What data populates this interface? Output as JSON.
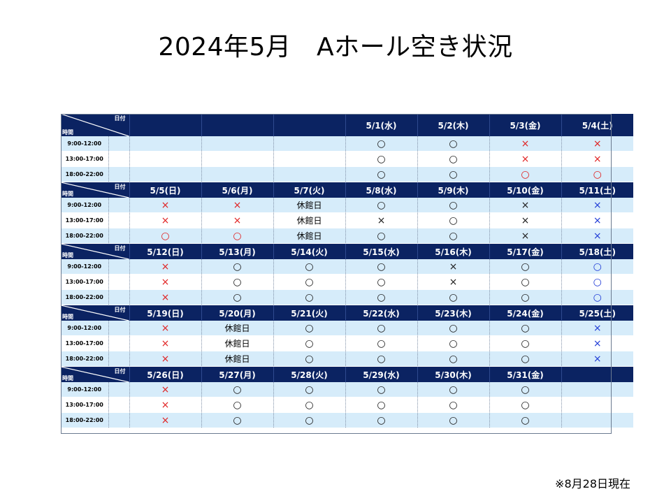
{
  "title": "2024年5月　Aホール空き状況",
  "footnote": "※8月28日現在",
  "colors": {
    "header_bg": "#0b2362",
    "row_tint": "#d6ecfa",
    "available_red": "#e02020",
    "available_blue": "#1f3bd6"
  },
  "corner": {
    "date_label": "日付",
    "time_label": "時間"
  },
  "time_slots": [
    "9:00-12:00",
    "13:00-17:00",
    "18:00-22:00"
  ],
  "weeks": [
    {
      "days": [
        "",
        "",
        "",
        "5/1(水)",
        "5/2(木)",
        "5/3(金)",
        "5/4(土)"
      ],
      "slots": [
        [
          {
            "t": ""
          },
          {
            "t": ""
          },
          {
            "t": ""
          },
          {
            "t": "○",
            "c": "black"
          },
          {
            "t": "○",
            "c": "black"
          },
          {
            "t": "×",
            "c": "red"
          },
          {
            "t": "×",
            "c": "red"
          }
        ],
        [
          {
            "t": ""
          },
          {
            "t": ""
          },
          {
            "t": ""
          },
          {
            "t": "○",
            "c": "black"
          },
          {
            "t": "○",
            "c": "black"
          },
          {
            "t": "×",
            "c": "red"
          },
          {
            "t": "×",
            "c": "red"
          }
        ],
        [
          {
            "t": ""
          },
          {
            "t": ""
          },
          {
            "t": ""
          },
          {
            "t": "○",
            "c": "black"
          },
          {
            "t": "○",
            "c": "black"
          },
          {
            "t": "○",
            "c": "red"
          },
          {
            "t": "○",
            "c": "red"
          }
        ]
      ]
    },
    {
      "days": [
        "5/5(日)",
        "5/6(月)",
        "5/7(火)",
        "5/8(水)",
        "5/9(木)",
        "5/10(金)",
        "5/11(土)"
      ],
      "slots": [
        [
          {
            "t": "×",
            "c": "red"
          },
          {
            "t": "×",
            "c": "red"
          },
          {
            "t": "休館日",
            "c": "text"
          },
          {
            "t": "○",
            "c": "black"
          },
          {
            "t": "○",
            "c": "black"
          },
          {
            "t": "×",
            "c": "black"
          },
          {
            "t": "×",
            "c": "blue"
          }
        ],
        [
          {
            "t": "×",
            "c": "red"
          },
          {
            "t": "×",
            "c": "red"
          },
          {
            "t": "休館日",
            "c": "text"
          },
          {
            "t": "×",
            "c": "black"
          },
          {
            "t": "○",
            "c": "black"
          },
          {
            "t": "×",
            "c": "black"
          },
          {
            "t": "×",
            "c": "blue"
          }
        ],
        [
          {
            "t": "○",
            "c": "red"
          },
          {
            "t": "○",
            "c": "red"
          },
          {
            "t": "休館日",
            "c": "text"
          },
          {
            "t": "○",
            "c": "black"
          },
          {
            "t": "○",
            "c": "black"
          },
          {
            "t": "×",
            "c": "black"
          },
          {
            "t": "×",
            "c": "blue"
          }
        ]
      ]
    },
    {
      "days": [
        "5/12(日)",
        "5/13(月)",
        "5/14(火)",
        "5/15(水)",
        "5/16(木)",
        "5/17(金)",
        "5/18(土)"
      ],
      "slots": [
        [
          {
            "t": "×",
            "c": "red"
          },
          {
            "t": "○",
            "c": "black"
          },
          {
            "t": "○",
            "c": "black"
          },
          {
            "t": "○",
            "c": "black"
          },
          {
            "t": "×",
            "c": "black"
          },
          {
            "t": "○",
            "c": "black"
          },
          {
            "t": "○",
            "c": "blue"
          }
        ],
        [
          {
            "t": "×",
            "c": "red"
          },
          {
            "t": "○",
            "c": "black"
          },
          {
            "t": "○",
            "c": "black"
          },
          {
            "t": "○",
            "c": "black"
          },
          {
            "t": "×",
            "c": "black"
          },
          {
            "t": "○",
            "c": "black"
          },
          {
            "t": "○",
            "c": "blue"
          }
        ],
        [
          {
            "t": "×",
            "c": "red"
          },
          {
            "t": "○",
            "c": "black"
          },
          {
            "t": "○",
            "c": "black"
          },
          {
            "t": "○",
            "c": "black"
          },
          {
            "t": "○",
            "c": "black"
          },
          {
            "t": "○",
            "c": "black"
          },
          {
            "t": "○",
            "c": "blue"
          }
        ]
      ]
    },
    {
      "days": [
        "5/19(日)",
        "5/20(月)",
        "5/21(火)",
        "5/22(水)",
        "5/23(木)",
        "5/24(金)",
        "5/25(土)"
      ],
      "slots": [
        [
          {
            "t": "×",
            "c": "red"
          },
          {
            "t": "休館日",
            "c": "text"
          },
          {
            "t": "○",
            "c": "black"
          },
          {
            "t": "○",
            "c": "black"
          },
          {
            "t": "○",
            "c": "black"
          },
          {
            "t": "○",
            "c": "black"
          },
          {
            "t": "×",
            "c": "blue"
          }
        ],
        [
          {
            "t": "×",
            "c": "red"
          },
          {
            "t": "休館日",
            "c": "text"
          },
          {
            "t": "○",
            "c": "black"
          },
          {
            "t": "○",
            "c": "black"
          },
          {
            "t": "○",
            "c": "black"
          },
          {
            "t": "○",
            "c": "black"
          },
          {
            "t": "×",
            "c": "blue"
          }
        ],
        [
          {
            "t": "×",
            "c": "red"
          },
          {
            "t": "休館日",
            "c": "text"
          },
          {
            "t": "○",
            "c": "black"
          },
          {
            "t": "○",
            "c": "black"
          },
          {
            "t": "○",
            "c": "black"
          },
          {
            "t": "○",
            "c": "black"
          },
          {
            "t": "×",
            "c": "blue"
          }
        ]
      ]
    },
    {
      "days": [
        "5/26(日)",
        "5/27(月)",
        "5/28(火)",
        "5/29(水)",
        "5/30(木)",
        "5/31(金)",
        ""
      ],
      "slots": [
        [
          {
            "t": "×",
            "c": "red"
          },
          {
            "t": "○",
            "c": "black"
          },
          {
            "t": "○",
            "c": "black"
          },
          {
            "t": "○",
            "c": "black"
          },
          {
            "t": "○",
            "c": "black"
          },
          {
            "t": "○",
            "c": "black"
          },
          {
            "t": ""
          }
        ],
        [
          {
            "t": "×",
            "c": "red"
          },
          {
            "t": "○",
            "c": "black"
          },
          {
            "t": "○",
            "c": "black"
          },
          {
            "t": "○",
            "c": "black"
          },
          {
            "t": "○",
            "c": "black"
          },
          {
            "t": "○",
            "c": "black"
          },
          {
            "t": ""
          }
        ],
        [
          {
            "t": "×",
            "c": "red"
          },
          {
            "t": "○",
            "c": "black"
          },
          {
            "t": "○",
            "c": "black"
          },
          {
            "t": "○",
            "c": "black"
          },
          {
            "t": "○",
            "c": "black"
          },
          {
            "t": "○",
            "c": "black"
          },
          {
            "t": ""
          }
        ]
      ]
    }
  ]
}
